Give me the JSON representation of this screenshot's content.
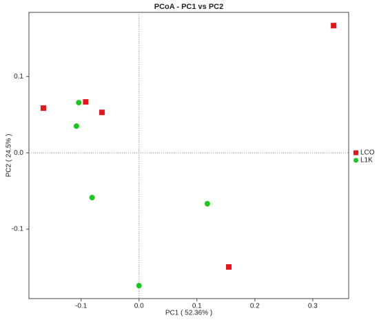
{
  "chart_data": {
    "type": "scatter",
    "title": "PCoA - PC1 vs PC2",
    "x_label": "PC1 ( 52.36% )",
    "y_label": "PC2 ( 24.5% )",
    "xlim": [
      -0.19,
      0.362
    ],
    "ylim": [
      -0.191,
      0.184
    ],
    "xticks": [
      -0.1,
      {
        "value": 0,
        "label": "0.0"
      },
      0.1,
      0.2,
      0.3
    ],
    "yticks": [
      -0.1,
      {
        "value": 0,
        "label": "0.0"
      },
      0.1
    ],
    "legend": "right",
    "series": [
      {
        "name": "LCO",
        "color": "#e8141c",
        "marker": "square",
        "x": [
          -0.165,
          -0.092,
          -0.064,
          0.336,
          0.155
        ],
        "values": [
          0.0586,
          0.0667,
          0.053,
          0.1667,
          -0.1495
        ]
      },
      {
        "name": "L1K",
        "color": "#19c919",
        "marker": "circle",
        "x": [
          -0.104,
          -0.108,
          -0.081,
          0.118,
          0.0
        ],
        "values": [
          0.0658,
          0.035,
          -0.0586,
          -0.0667,
          -0.174
        ]
      }
    ]
  }
}
